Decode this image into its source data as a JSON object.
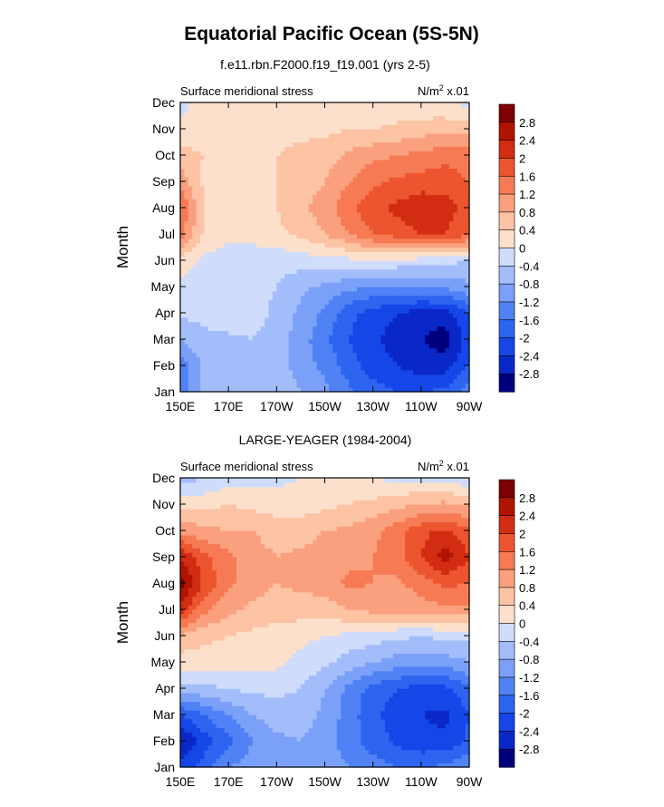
{
  "figure": {
    "title": "Equatorial Pacific Ocean (5S-5N)"
  },
  "chart_data": [
    {
      "type": "heatmap",
      "title": "f.e11.rbn.F2000.f19_f19.001 (yrs 2-5)",
      "left_label": "Surface meridional stress",
      "units": "N/m",
      "units_exp": "2",
      "units_scale": " x.01",
      "xlabel": "",
      "ylabel": "Month",
      "x_ticks": [
        "150E",
        "170E",
        "170W",
        "150W",
        "130W",
        "110W",
        "90W"
      ],
      "y_ticks": [
        "Jan",
        "Feb",
        "Mar",
        "Apr",
        "May",
        "Jun",
        "Jul",
        "Aug",
        "Sep",
        "Oct",
        "Nov",
        "Dec"
      ],
      "x": [
        150,
        160,
        170,
        180,
        190,
        200,
        210,
        220,
        230,
        240,
        250,
        260,
        270
      ],
      "y": [
        "Jan",
        "Feb",
        "Mar",
        "Apr",
        "May",
        "Jun",
        "Jul",
        "Aug",
        "Sep",
        "Oct",
        "Nov",
        "Dec"
      ],
      "z": [
        [
          -1.4,
          -0.6,
          -0.5,
          -0.4,
          -0.5,
          -0.8,
          -1.1,
          -1.5,
          -1.8,
          -2.0,
          -2.0,
          -1.9,
          -1.4
        ],
        [
          -1.5,
          -0.7,
          -0.6,
          -0.5,
          -0.6,
          -1.0,
          -1.3,
          -1.8,
          -2.2,
          -2.4,
          -2.6,
          -2.6,
          -2.0
        ],
        [
          -0.8,
          -0.5,
          -0.5,
          -0.4,
          -0.6,
          -1.0,
          -1.5,
          -2.0,
          -2.3,
          -2.6,
          -2.8,
          -3.0,
          -2.2
        ],
        [
          -0.3,
          -0.3,
          -0.1,
          -0.2,
          -0.5,
          -0.9,
          -1.3,
          -1.9,
          -2.2,
          -2.4,
          -2.6,
          -2.6,
          -2.0
        ],
        [
          -0.1,
          -0.2,
          -0.1,
          -0.3,
          -0.4,
          -0.7,
          -0.9,
          -1.1,
          -1.2,
          -1.3,
          -1.2,
          -1.1,
          -0.9
        ],
        [
          0.2,
          -0.1,
          -0.2,
          -0.3,
          -0.3,
          -0.2,
          -0.2,
          -0.1,
          0.0,
          -0.1,
          -0.2,
          -0.3,
          -0.4
        ],
        [
          1.4,
          0.3,
          0.1,
          0.2,
          0.3,
          0.5,
          0.8,
          1.2,
          1.6,
          1.8,
          2.0,
          2.0,
          1.7
        ],
        [
          1.6,
          0.4,
          0.2,
          0.3,
          0.4,
          0.7,
          1.0,
          1.5,
          1.9,
          2.1,
          2.3,
          2.2,
          1.8
        ],
        [
          1.1,
          0.3,
          0.3,
          0.3,
          0.4,
          0.6,
          0.8,
          1.2,
          1.5,
          1.7,
          1.8,
          1.8,
          1.6
        ],
        [
          0.5,
          0.4,
          0.4,
          0.4,
          0.4,
          0.5,
          0.6,
          0.9,
          1.1,
          1.2,
          1.3,
          1.5,
          1.4
        ],
        [
          0.2,
          0.3,
          0.3,
          0.3,
          0.3,
          0.3,
          0.3,
          0.4,
          0.4,
          0.5,
          0.6,
          0.7,
          0.6
        ],
        [
          -0.2,
          0.3,
          0.3,
          0.3,
          0.3,
          0.3,
          0.2,
          0.2,
          0.1,
          0.1,
          0.1,
          0.0,
          -0.1
        ]
      ],
      "levels": [
        -2.8,
        -2.4,
        -2.0,
        -1.6,
        -1.2,
        -0.8,
        -0.4,
        0,
        0.4,
        0.8,
        1.2,
        1.6,
        2.0,
        2.4,
        2.8
      ],
      "legend_labels": [
        "2.8",
        "2.4",
        "2",
        "1.6",
        "1.2",
        "0.8",
        "0.4",
        "0",
        "-0.4",
        "-0.8",
        "-1.2",
        "-1.6",
        "-2",
        "-2.4",
        "-2.8"
      ],
      "colors": [
        "#00007f",
        "#0a28c8",
        "#1446e8",
        "#2d64f0",
        "#5082f5",
        "#7ba0f8",
        "#a3bdfa",
        "#cfdcfc",
        "#fce0cc",
        "#fcc3a4",
        "#fba07e",
        "#f67b55",
        "#ec5530",
        "#d22d12",
        "#b01400",
        "#7e0000"
      ],
      "legend": "right"
    },
    {
      "type": "heatmap",
      "title": "LARGE-YEAGER (1984-2004)",
      "left_label": "Surface meridional stress",
      "units": "N/m",
      "units_exp": "2",
      "units_scale": " x.01",
      "xlabel": "",
      "ylabel": "Month",
      "x_ticks": [
        "150E",
        "170E",
        "170W",
        "150W",
        "130W",
        "110W",
        "90W"
      ],
      "y_ticks": [
        "Jan",
        "Feb",
        "Mar",
        "Apr",
        "May",
        "Jun",
        "Jul",
        "Aug",
        "Sep",
        "Oct",
        "Nov",
        "Dec"
      ],
      "x": [
        150,
        160,
        170,
        180,
        190,
        200,
        210,
        220,
        230,
        240,
        250,
        260,
        270
      ],
      "y": [
        "Jan",
        "Feb",
        "Mar",
        "Apr",
        "May",
        "Jun",
        "Jul",
        "Aug",
        "Sep",
        "Oct",
        "Nov",
        "Dec"
      ],
      "z": [
        [
          -2.2,
          -1.8,
          -1.2,
          -1.0,
          -0.8,
          -0.9,
          -1.0,
          -1.2,
          -1.4,
          -1.6,
          -1.6,
          -1.5,
          -1.2
        ],
        [
          -2.9,
          -2.2,
          -1.7,
          -1.2,
          -0.9,
          -0.8,
          -1.0,
          -1.4,
          -1.8,
          -2.1,
          -2.3,
          -2.3,
          -1.9
        ],
        [
          -2.0,
          -1.6,
          -1.2,
          -0.8,
          -0.6,
          -0.6,
          -0.9,
          -1.4,
          -1.9,
          -2.2,
          -2.4,
          -2.5,
          -2.0
        ],
        [
          -0.6,
          -0.5,
          -0.4,
          -0.3,
          -0.3,
          -0.4,
          -0.8,
          -1.3,
          -1.8,
          -2.0,
          -2.2,
          -2.1,
          -1.7
        ],
        [
          0.2,
          0.2,
          0.2,
          0.2,
          0.1,
          -0.1,
          -0.3,
          -0.6,
          -0.8,
          -1.0,
          -1.1,
          -1.0,
          -0.8
        ],
        [
          0.7,
          0.5,
          0.4,
          0.3,
          0.2,
          0.1,
          0.0,
          -0.1,
          -0.2,
          -0.3,
          -0.4,
          -0.3,
          -0.3
        ],
        [
          2.2,
          1.3,
          0.9,
          0.7,
          0.6,
          0.6,
          0.6,
          0.8,
          0.9,
          0.9,
          1.0,
          1.1,
          1.1
        ],
        [
          3.0,
          1.9,
          1.3,
          1.0,
          0.8,
          0.9,
          1.0,
          1.3,
          1.2,
          1.1,
          1.4,
          1.7,
          1.6
        ],
        [
          2.4,
          1.7,
          1.3,
          1.0,
          0.8,
          0.9,
          1.0,
          1.1,
          1.2,
          1.4,
          2.0,
          2.6,
          2.0
        ],
        [
          1.1,
          0.9,
          0.8,
          0.8,
          0.6,
          0.6,
          0.8,
          0.9,
          1.1,
          1.4,
          1.9,
          2.1,
          1.7
        ],
        [
          0.2,
          0.3,
          0.4,
          0.3,
          0.2,
          0.2,
          0.3,
          0.4,
          0.5,
          0.7,
          0.8,
          0.9,
          0.7
        ],
        [
          -0.6,
          -0.4,
          -0.2,
          -0.2,
          -0.1,
          0.0,
          0.1,
          0.2,
          0.0,
          -0.1,
          -0.1,
          -0.2,
          -0.3
        ]
      ],
      "levels": [
        -2.8,
        -2.4,
        -2.0,
        -1.6,
        -1.2,
        -0.8,
        -0.4,
        0,
        0.4,
        0.8,
        1.2,
        1.6,
        2.0,
        2.4,
        2.8
      ],
      "legend_labels": [
        "2.8",
        "2.4",
        "2",
        "1.6",
        "1.2",
        "0.8",
        "0.4",
        "0",
        "-0.4",
        "-0.8",
        "-1.2",
        "-1.6",
        "-2",
        "-2.4",
        "-2.8"
      ],
      "colors": [
        "#00007f",
        "#0a28c8",
        "#1446e8",
        "#2d64f0",
        "#5082f5",
        "#7ba0f8",
        "#a3bdfa",
        "#cfdcfc",
        "#fce0cc",
        "#fcc3a4",
        "#fba07e",
        "#f67b55",
        "#ec5530",
        "#d22d12",
        "#b01400",
        "#7e0000"
      ],
      "legend": "right"
    }
  ]
}
